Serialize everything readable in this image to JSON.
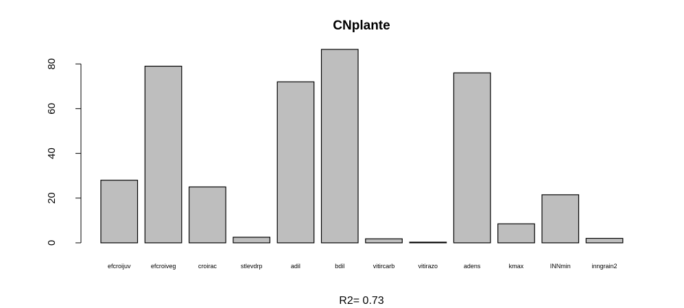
{
  "chart_data": {
    "type": "bar",
    "title": "CNplante",
    "subtitle": "R2= 0.73",
    "xlabel": "",
    "ylabel": "",
    "categories": [
      "efcroijuv",
      "efcroiveg",
      "croirac",
      "stlevdrp",
      "adil",
      "bdil",
      "vitircarb",
      "vitirazo",
      "adens",
      "kmax",
      "INNmin",
      "inngrain2"
    ],
    "values": [
      28,
      79,
      25,
      2.5,
      72,
      86.5,
      1.8,
      0.3,
      76,
      8.5,
      21.5,
      2
    ],
    "yticks": [
      0,
      20,
      40,
      60,
      80
    ],
    "ylim": [
      0,
      86.5
    ],
    "grid": false,
    "colors": {
      "bar_fill": "#bebebe",
      "bar_stroke": "#000000"
    }
  }
}
